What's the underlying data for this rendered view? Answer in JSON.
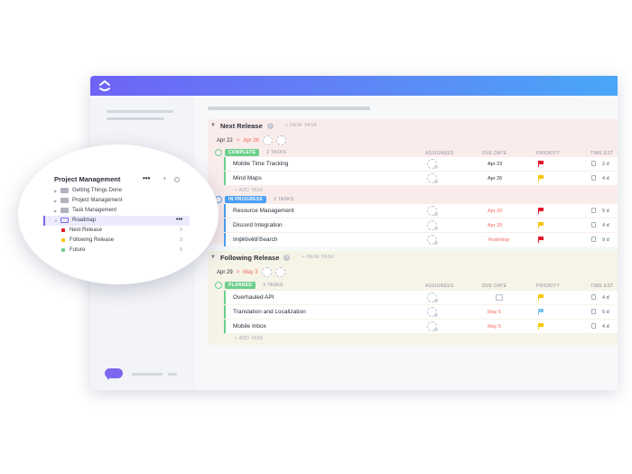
{
  "colors": {
    "accent": "#7b68ee",
    "green": "#6dcf8c",
    "blue": "#4aa0f3",
    "red": "#f36a5c",
    "urgent": "#e5172b",
    "yellow": "#f6c500",
    "light_blue": "#7ec4f0"
  },
  "releases": [
    {
      "name": "Next Release",
      "new_task": "+ NEW TASK",
      "date_start": "Apr 22",
      "date_sep": ">",
      "date_end": "Apr 26",
      "columns": {
        "assignees": "ASSIGNEES",
        "due": "DUE DATE",
        "priority": "PRIORITY",
        "est": "TIME EST"
      },
      "groups": [
        {
          "status": "COMPLETE",
          "status_color": "#6dcf8c",
          "count": "2 TASKS",
          "add_task": "+ ADD TASK",
          "tasks": [
            {
              "name": "Mobile Time Tracking",
              "due": "Apr 23",
              "due_red": false,
              "priority": "urgent",
              "est": "2 d"
            },
            {
              "name": "Mind Maps",
              "due": "Apr 26",
              "due_red": false,
              "priority": "high",
              "est": "4 d"
            }
          ]
        },
        {
          "status": "IN PROGRESS",
          "status_color": "#4aa0f3",
          "count": "3 TASKS",
          "add_task": "+ ADD TASK",
          "tasks": [
            {
              "name": "Resource Management",
              "due": "Apr 20",
              "due_red": true,
              "priority": "urgent",
              "est": "5 d"
            },
            {
              "name": "Discord Integration",
              "due": "Apr 25",
              "due_red": true,
              "priority": "high",
              "est": "4 d"
            },
            {
              "name": "Improved Search",
              "due": "Yesterday",
              "due_red": true,
              "priority": "urgent",
              "est": "9 d"
            }
          ]
        }
      ]
    },
    {
      "name": "Following Release",
      "new_task": "+ NEW TASK",
      "date_start": "Apr 29",
      "date_sep": ">",
      "date_end": "May 3",
      "columns": {
        "assignees": "ASSIGNEES",
        "due": "DUE DATE",
        "priority": "PRIORITY",
        "est": "TIME EST"
      },
      "groups": [
        {
          "status": "PLANNED",
          "status_color": "#6dcf8c",
          "count": "3 TASKS",
          "add_task": "+ ADD TASK",
          "tasks": [
            {
              "name": "Overhauled API",
              "due": "",
              "due_red": false,
              "priority": "high",
              "est": "4 d"
            },
            {
              "name": "Translation and Localization",
              "due": "May 5",
              "due_red": true,
              "priority": "normal",
              "est": "5 d"
            },
            {
              "name": "Mobile Inbox",
              "due": "May 5",
              "due_red": true,
              "priority": "high",
              "est": "4 d"
            }
          ]
        }
      ]
    }
  ],
  "popup": {
    "title": "Project Management",
    "more": "•••",
    "plus": "+",
    "folders": [
      {
        "name": "Getting Things Done"
      },
      {
        "name": "Project Management"
      },
      {
        "name": "Task Management"
      },
      {
        "name": "Roadmap"
      }
    ],
    "lists": [
      {
        "name": "Next Release",
        "count": "3",
        "color": "#e5172b"
      },
      {
        "name": "Following Release",
        "count": "3",
        "color": "#f6c500"
      },
      {
        "name": "Future",
        "count": "5",
        "color": "#6dcf8c"
      }
    ]
  }
}
